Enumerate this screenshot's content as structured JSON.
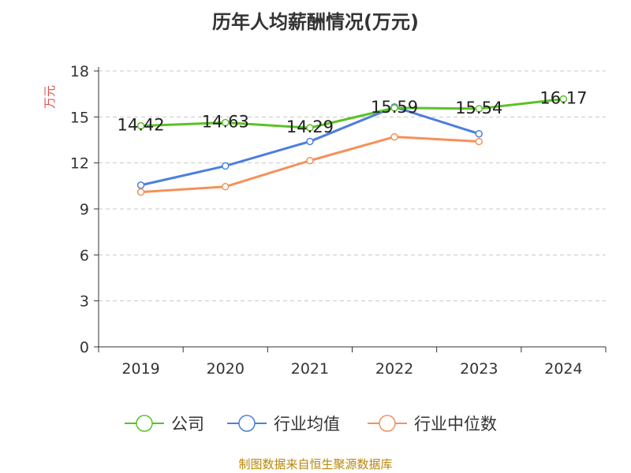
{
  "chart_data": {
    "type": "line",
    "title": "历年人均薪酬情况(万元)",
    "ylabel": "万元",
    "xlabel": "",
    "categories": [
      "2019",
      "2020",
      "2021",
      "2022",
      "2023",
      "2024"
    ],
    "ylim": [
      0,
      18
    ],
    "yticks": [
      0,
      3,
      6,
      9,
      12,
      15,
      18
    ],
    "grid": true,
    "legend_position": "bottom",
    "series": [
      {
        "name": "公司",
        "color": "#5cc126",
        "values": [
          14.42,
          14.63,
          14.29,
          15.59,
          15.54,
          16.17
        ],
        "labels": [
          "14.42",
          "14.63",
          "14.29",
          "15.59",
          "15.54",
          "16.17"
        ]
      },
      {
        "name": "行业均值",
        "color": "#4c7fdc",
        "values": [
          10.55,
          11.8,
          13.4,
          15.65,
          13.9,
          null
        ]
      },
      {
        "name": "行业中位数",
        "color": "#f4915a",
        "values": [
          10.1,
          10.45,
          12.15,
          13.7,
          13.4,
          null
        ]
      }
    ]
  },
  "footer": {
    "source": "制图数据来自恒生聚源数据库"
  }
}
